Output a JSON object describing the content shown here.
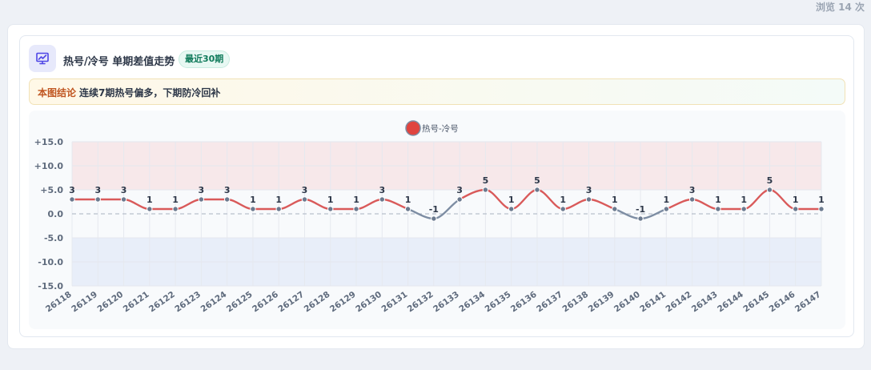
{
  "page": {
    "views_text": "浏览 14 次"
  },
  "card": {
    "title": "热号/冷号 单期差值走势",
    "badge": "最近30期",
    "conclusion_label": "本图结论",
    "conclusion_text": "连续7期热号偏多，下期防冷回补",
    "icon": "chart-trend-icon"
  },
  "colors": {
    "positive_line": "#d95a5a",
    "negative_line": "#7d8da3",
    "point": "#6b7a8f",
    "hot_zone": "#f7e8ea",
    "cold_zone": "#e8eef9",
    "legend_dot": "#e0443f"
  },
  "chart_data": {
    "type": "line",
    "legend": "热号-冷号",
    "legend_position": "top-center",
    "x": [
      "26118",
      "26119",
      "26120",
      "26121",
      "26122",
      "26123",
      "26124",
      "26125",
      "26126",
      "26127",
      "26128",
      "26129",
      "26130",
      "26131",
      "26132",
      "26133",
      "26134",
      "26135",
      "26136",
      "26137",
      "26138",
      "26139",
      "26140",
      "26141",
      "26142",
      "26143",
      "26144",
      "26145",
      "26146",
      "26147"
    ],
    "series": [
      {
        "name": "热号-冷号",
        "values": [
          3,
          3,
          3,
          1,
          1,
          3,
          3,
          1,
          1,
          3,
          1,
          1,
          3,
          1,
          -1,
          3,
          5,
          1,
          5,
          1,
          3,
          1,
          -1,
          1,
          3,
          1,
          1,
          5,
          1,
          1
        ]
      }
    ],
    "ylim": [
      -15,
      15
    ],
    "yticks": [
      15,
      10,
      5,
      0,
      -5,
      -10,
      -15
    ],
    "ytick_labels": [
      "+15.0",
      "+10.0",
      "+5.0",
      "0.0",
      "-5.0",
      "-10.0",
      "-15.0"
    ],
    "zones": {
      "hot_above": 5,
      "cold_below": -5
    },
    "grid": true,
    "baseline_dashed": 0,
    "data_labels": true
  }
}
